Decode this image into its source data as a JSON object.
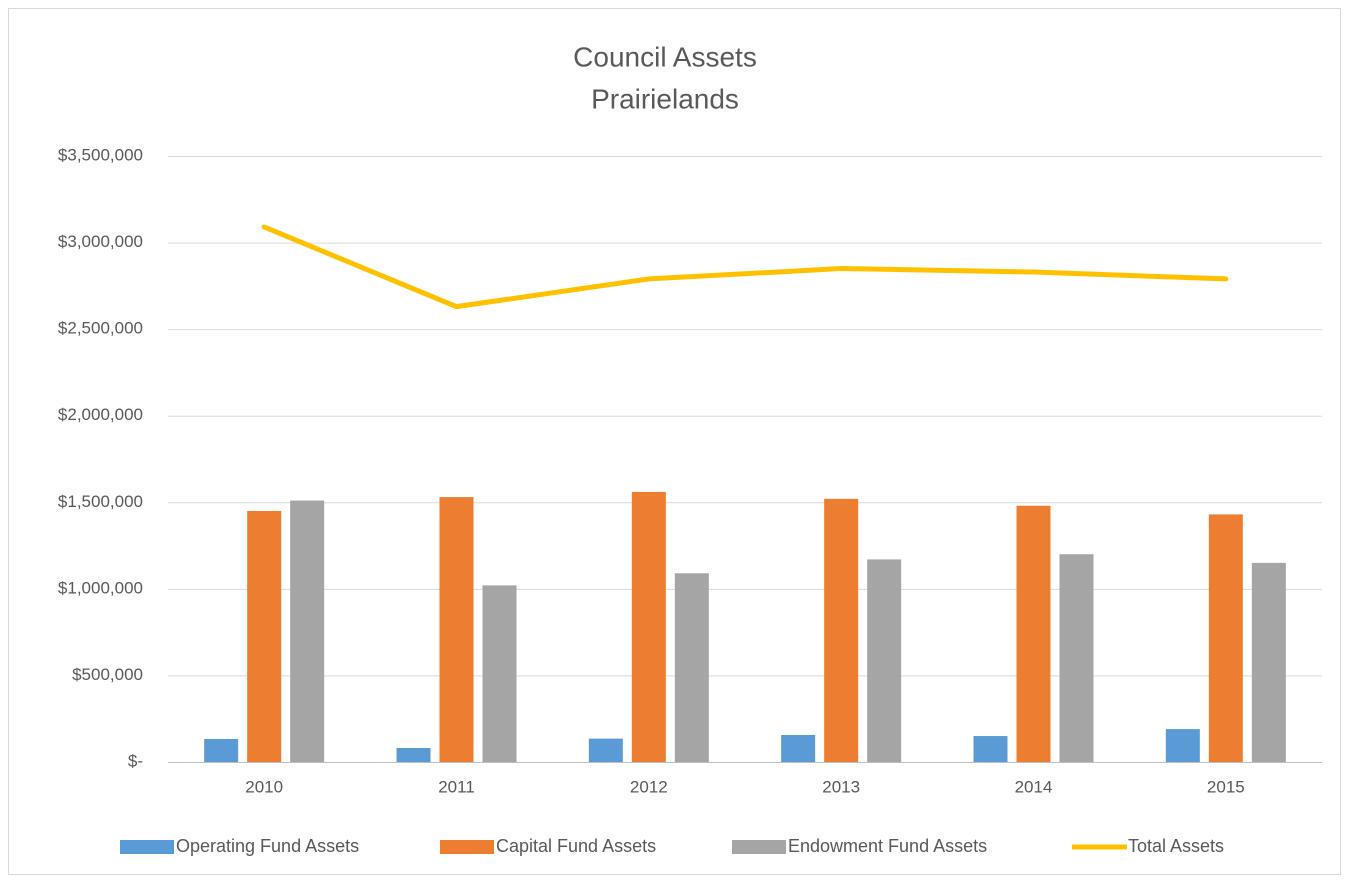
{
  "chart_data": {
    "type": "bar",
    "title": "Council Assets",
    "subtitle": "Prairielands",
    "categories": [
      "2010",
      "2011",
      "2012",
      "2013",
      "2014",
      "2015"
    ],
    "series": [
      {
        "name": "Operating Fund Assets",
        "color": "#5b9bd5",
        "values": [
          133000,
          81000,
          135000,
          156000,
          150000,
          190000
        ]
      },
      {
        "name": "Capital Fund Assets",
        "color": "#ed7d31",
        "values": [
          1450000,
          1530000,
          1560000,
          1520000,
          1480000,
          1430000
        ]
      },
      {
        "name": "Endowment Fund Assets",
        "color": "#a5a5a5",
        "values": [
          1510000,
          1020000,
          1090000,
          1170000,
          1200000,
          1150000
        ]
      },
      {
        "name": "Total Assets",
        "color": "#ffc000",
        "type": "line",
        "values": [
          3090000,
          2630000,
          2790000,
          2850000,
          2830000,
          2790000
        ]
      }
    ],
    "ylim": [
      0,
      3500000
    ],
    "yticks": [
      {
        "value": 0,
        "label": "$-"
      },
      {
        "value": 500000,
        "label": "$500,000"
      },
      {
        "value": 1000000,
        "label": "$1,000,000"
      },
      {
        "value": 1500000,
        "label": "$1,500,000"
      },
      {
        "value": 2000000,
        "label": "$2,000,000"
      },
      {
        "value": 2500000,
        "label": "$2,500,000"
      },
      {
        "value": 3000000,
        "label": "$3,000,000"
      },
      {
        "value": 3500000,
        "label": "$3,500,000"
      }
    ],
    "grid": true,
    "legend": "bottom"
  }
}
